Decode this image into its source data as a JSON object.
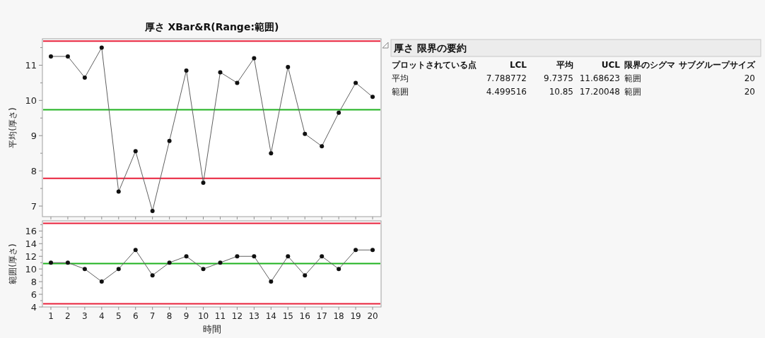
{
  "chart_data": [
    {
      "type": "line",
      "title": "厚さ  XBar&R(Range:範囲)",
      "ylabel": "平均(厚さ)",
      "categories": [
        null,
        null,
        null,
        null,
        null,
        null,
        null,
        null,
        null,
        null,
        null,
        null,
        null,
        null,
        null,
        null,
        null,
        null,
        null,
        null
      ],
      "values": [
        11.25,
        11.25,
        10.65,
        11.5,
        7.41,
        8.56,
        6.86,
        8.85,
        10.85,
        7.66,
        10.8,
        10.5,
        11.2,
        8.5,
        10.95,
        9.05,
        8.7,
        9.65,
        10.5,
        10.1
      ],
      "color": "#606060",
      "marker": "circle",
      "line_style": "solid",
      "tick_labels": "y",
      "ylim": [
        6.7,
        11.75
      ],
      "yticks": [
        7,
        {
          "value": 7.5,
          "label": null
        },
        8,
        {
          "value": 8.5,
          "label": null
        },
        9,
        {
          "value": 9.5,
          "label": null
        },
        10,
        {
          "value": 10.5,
          "label": null
        },
        11,
        {
          "value": 11.5,
          "label": null
        }
      ],
      "ref_lines": [
        {
          "axis": "y",
          "value": 11.68623,
          "color": "#e8203a"
        },
        {
          "axis": "y",
          "value": 9.7375,
          "color": "#1fb21f"
        },
        {
          "axis": "y",
          "value": 7.788772,
          "color": "#e8203a"
        }
      ]
    },
    {
      "type": "line",
      "ylabel": "範囲(厚さ)",
      "xlabel": "時間",
      "categories": [
        "1",
        "2",
        "3",
        "4",
        "5",
        "6",
        "7",
        "8",
        "9",
        "10",
        "11",
        "12",
        "13",
        "14",
        "15",
        "16",
        "17",
        "18",
        "19",
        "20"
      ],
      "values": [
        11,
        11,
        10,
        8,
        10,
        13,
        9,
        11,
        12,
        10,
        11,
        12,
        12,
        8,
        12,
        9,
        12,
        10,
        13,
        13
      ],
      "color": "#606060",
      "marker": "circle",
      "line_style": "solid",
      "ylim": [
        4,
        17.6
      ],
      "yticks": [
        4,
        {
          "value": 5,
          "label": null
        },
        6,
        {
          "value": 7,
          "label": null
        },
        8,
        {
          "value": 9,
          "label": null
        },
        10,
        {
          "value": 11,
          "label": null
        },
        12,
        {
          "value": 13,
          "label": null
        },
        14,
        {
          "value": 15,
          "label": null
        },
        16,
        {
          "value": 17,
          "label": null
        }
      ],
      "ref_lines": [
        {
          "axis": "y",
          "value": 17.20048,
          "color": "#e8203a"
        },
        {
          "axis": "y",
          "value": 10.85,
          "color": "#1fb21f"
        },
        {
          "axis": "y",
          "value": 4.499516,
          "color": "#e8203a"
        }
      ]
    },
    {
      "type": "other",
      "title": "厚さ 限界の要約",
      "annotations": [
        "プロットされている点",
        "LCL",
        "平均",
        "UCL",
        "限界のシグマ",
        "サブグループサイズ",
        "平均",
        "7.788772",
        "9.7375",
        "11.68623",
        "範囲",
        "20",
        "範囲",
        "4.499516",
        "10.85",
        "17.20048",
        "範囲",
        "20"
      ]
    }
  ]
}
